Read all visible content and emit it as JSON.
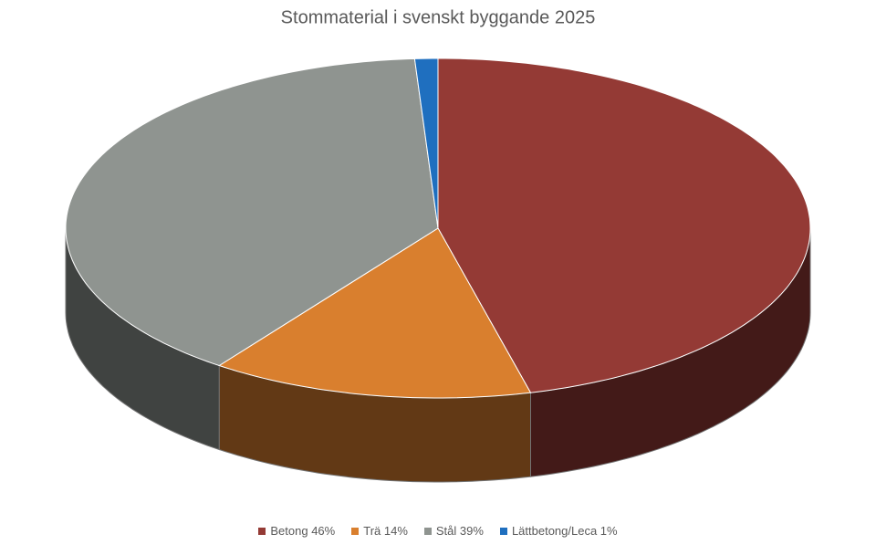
{
  "chart_data": {
    "type": "pie3d",
    "title": "Stommaterial i svenskt byggande 2025",
    "categories": [
      "Betong 46%",
      "Trä 14%",
      "Stål 39%",
      "Lättbetong/Leca 1%"
    ],
    "values": [
      46,
      14,
      39,
      1
    ],
    "colors": [
      "#943a35",
      "#d97f2e",
      "#8f9490",
      "#1f6fbf"
    ],
    "legend": "bottom"
  }
}
